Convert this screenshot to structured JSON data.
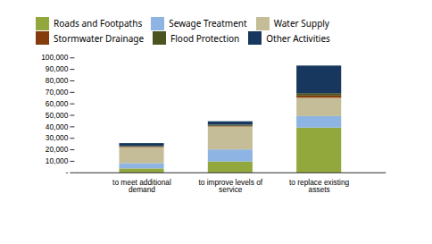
{
  "chart_data": {
    "type": "bar",
    "stacked": true,
    "categories": [
      "to meet additional\ndemand",
      "to improve levels of\nservice",
      "to replace existing\nassets"
    ],
    "series": [
      {
        "name": "Roads and Footpaths",
        "color": "#92a83c",
        "values": [
          3500,
          9500,
          39000
        ]
      },
      {
        "name": "Sewage Treatment",
        "color": "#8db4e2",
        "values": [
          4500,
          10500,
          10000
        ]
      },
      {
        "name": "Water Supply",
        "color": "#c4bd97",
        "values": [
          14000,
          20000,
          16000
        ]
      },
      {
        "name": "Stormwater Drainage",
        "color": "#843c0c",
        "values": [
          500,
          500,
          2000
        ]
      },
      {
        "name": "Flood Protection",
        "color": "#4b5320",
        "values": [
          500,
          1000,
          2000
        ]
      },
      {
        "name": "Other Activities",
        "color": "#17375e",
        "values": [
          2500,
          3000,
          24000
        ]
      }
    ],
    "ylim": [
      0,
      100000
    ],
    "yticks": [
      {
        "value": 0,
        "label": "-"
      },
      {
        "value": 10000,
        "label": "10,000"
      },
      {
        "value": 20000,
        "label": "20,000"
      },
      {
        "value": 30000,
        "label": "30,000"
      },
      {
        "value": 40000,
        "label": "40,000"
      },
      {
        "value": 50000,
        "label": "50,000"
      },
      {
        "value": 60000,
        "label": "60,000"
      },
      {
        "value": 70000,
        "label": "70,000"
      },
      {
        "value": 80000,
        "label": "80,000"
      },
      {
        "value": 90000,
        "label": "90,000"
      },
      {
        "value": 100000,
        "label": "100,000"
      }
    ],
    "grid": false,
    "legend": "top"
  }
}
